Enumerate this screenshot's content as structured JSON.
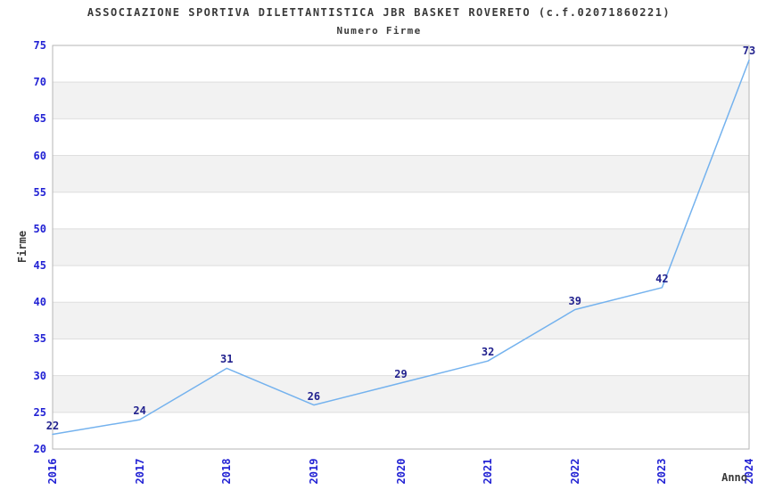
{
  "chart_data": {
    "type": "line",
    "title": "ASSOCIAZIONE SPORTIVA DILETTANTISTICA JBR BASKET ROVERETO (c.f.02071860221)",
    "subtitle": "Numero Firme",
    "xlabel": "Anno",
    "ylabel": "Firme",
    "categories": [
      "2016",
      "2017",
      "2018",
      "2019",
      "2020",
      "2021",
      "2022",
      "2023",
      "2024"
    ],
    "series": [
      {
        "name": "Numero Firme",
        "values": [
          22,
          24,
          31,
          26,
          29,
          32,
          39,
          42,
          73
        ]
      }
    ],
    "ylim": [
      20,
      75
    ],
    "ytick_step": 5,
    "yticks": [
      20,
      25,
      30,
      35,
      40,
      45,
      50,
      55,
      60,
      65,
      70,
      75
    ],
    "grid": "horizontal gridlines with alternating shaded bands",
    "legend": "none",
    "data_labels_visible": true,
    "colors": {
      "line": "#74B2EE",
      "band_fill": "#F2F2F2",
      "grid_line": "#DEDEDE",
      "plot_border": "#B6B6B6",
      "axis_tick_label": "#2222D4",
      "data_label": "#22228E",
      "title_text": "#3A3A3A"
    }
  }
}
